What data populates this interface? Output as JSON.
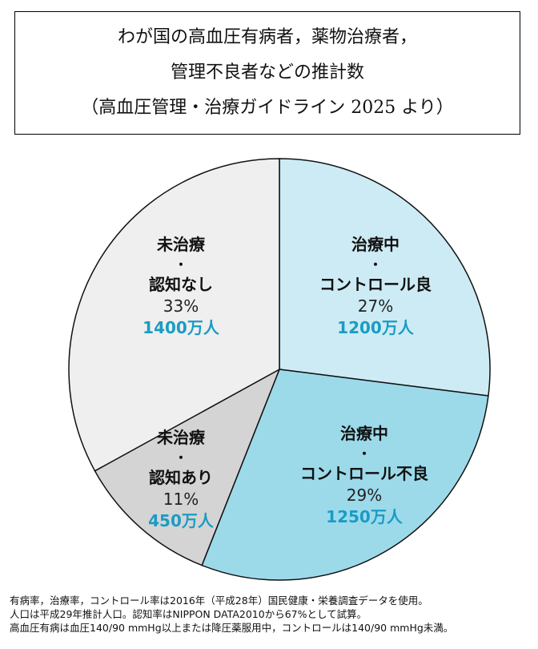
{
  "chart_data": {
    "type": "pie",
    "title": [
      "わが国の高血圧有病者，薬物治療者，",
      "管理不良者などの推計数",
      "（高血圧管理・治療ガイドライン 2025 より）"
    ],
    "start_angle": "top",
    "direction": "clockwise",
    "slices": [
      {
        "label": [
          "治療中",
          "・",
          "コントロール良"
        ],
        "percent": 27,
        "percent_label": "27%",
        "count_label": "1200万人",
        "value": 1200,
        "color": "#cdebf4"
      },
      {
        "label": [
          "治療中",
          "・",
          "コントロール不良"
        ],
        "percent": 29,
        "percent_label": "29%",
        "count_label": "1250万人",
        "value": 1250,
        "color": "#9cdaea"
      },
      {
        "label": [
          "未治療",
          "・",
          "認知あり"
        ],
        "percent": 11,
        "percent_label": "11%",
        "count_label": "450万人",
        "value": 450,
        "color": "#d4d4d4"
      },
      {
        "label": [
          "未治療",
          "・",
          "認知なし"
        ],
        "percent": 33,
        "percent_label": "33%",
        "count_label": "1400万人",
        "value": 1400,
        "color": "#efefef"
      }
    ],
    "count_color": "#1a9cc4"
  },
  "notes": [
    "有病率，治療率，コントロール率は2016年（平成28年）国民健康・栄養調査データを使用。",
    "人口は平成29年推計人口。認知率はNIPPON DATA2010から67%として試算。",
    "高血圧有病は血圧140/90 mmHg以上または降圧薬服用中，コントロールは140/90 mmHg未満。"
  ]
}
